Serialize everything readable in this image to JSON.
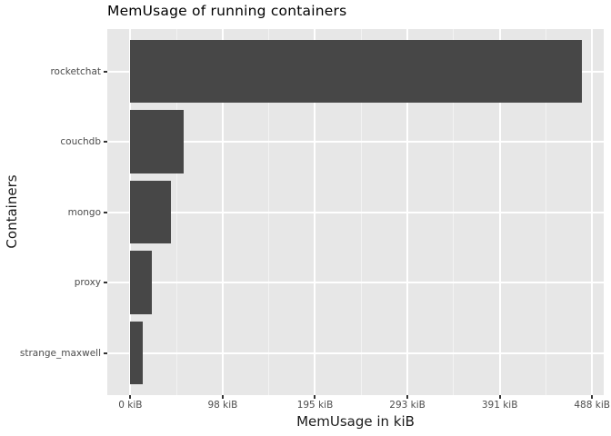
{
  "chart_data": {
    "type": "bar",
    "orientation": "horizontal",
    "title": "MemUsage of running containers",
    "xlabel": "MemUsage in kiB",
    "ylabel": "Containers",
    "categories": [
      "rocketchat",
      "couchdb",
      "mongo",
      "proxy",
      "strange_maxwell"
    ],
    "values": [
      477.5,
      56.6,
      43.2,
      22.7,
      13.1
    ],
    "value_unit": "kiB",
    "x_ticks": [
      {
        "value": 0,
        "label": "0 kiB"
      },
      {
        "value": 97.66,
        "label": "98 kiB"
      },
      {
        "value": 195.31,
        "label": "195 kiB"
      },
      {
        "value": 292.97,
        "label": "293 kiB"
      },
      {
        "value": 390.63,
        "label": "391 kiB"
      },
      {
        "value": 488.28,
        "label": "488 kiB"
      }
    ],
    "xlim": [
      -24.4,
      500.6
    ],
    "grid": {
      "vertical_major": true,
      "vertical_minor": true,
      "horizontal_major": true
    },
    "legend": "none",
    "style": {
      "page_bg": "#FFFFFF",
      "panel_bg": "#E7E7E7",
      "bar_fill": "#474747",
      "grid_major": "#FFFFFF",
      "grid_minor": "#F3F3F3",
      "tick_label_color": "#4D4D4D",
      "axis_title_color": "#1A1A1A",
      "title_color": "#000000",
      "tick_mark_color": "#333333"
    }
  }
}
